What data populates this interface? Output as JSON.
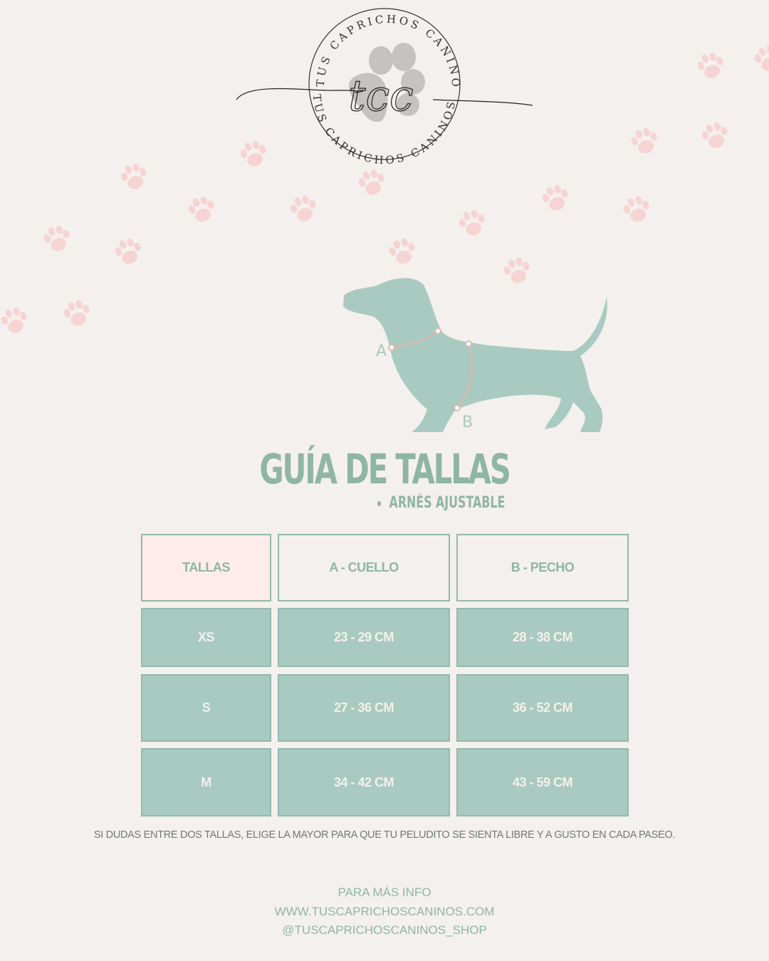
{
  "logo": {
    "monogram": "tcc",
    "ring_text_top": "TUS CAPRICHOS CANINOS",
    "ring_text_bottom": "TUS CAPRICHOS CANINOS"
  },
  "illustration": {
    "label_a": "A",
    "label_b": "B"
  },
  "title": "GUÍA DE TALLAS",
  "subtitle": "ARNÉS AJUSTABLE",
  "table": {
    "headers": [
      "TALLAS",
      "A - CUELLO",
      "B - PECHO"
    ],
    "rows": [
      [
        "XS",
        "23 - 29 CM",
        "28 - 38 CM"
      ],
      [
        "S",
        "27 - 36 CM",
        "36 - 52 CM"
      ],
      [
        "M",
        "34 - 42 CM",
        "43 - 59 CM"
      ]
    ]
  },
  "note": "SI DUDAS ENTRE DOS TALLAS, ELIGE LA MAYOR PARA QUE TU PELUDITO SE SIENTA LIBRE Y A GUSTO EN CADA PASEO.",
  "footer": {
    "line1": "PARA MÁS INFO",
    "website": "WWW.TUSCAPRICHOSCANINOS.COM",
    "handle": "@TUSCAPRICHOSCANINOS_SHOP"
  },
  "colors": {
    "background": "#f4f0ed",
    "accent_teal": "#a9cac0",
    "text_teal": "#8fb5a7",
    "paw_pink": "#f6d4d4",
    "header_pink": "#fdeceb"
  }
}
